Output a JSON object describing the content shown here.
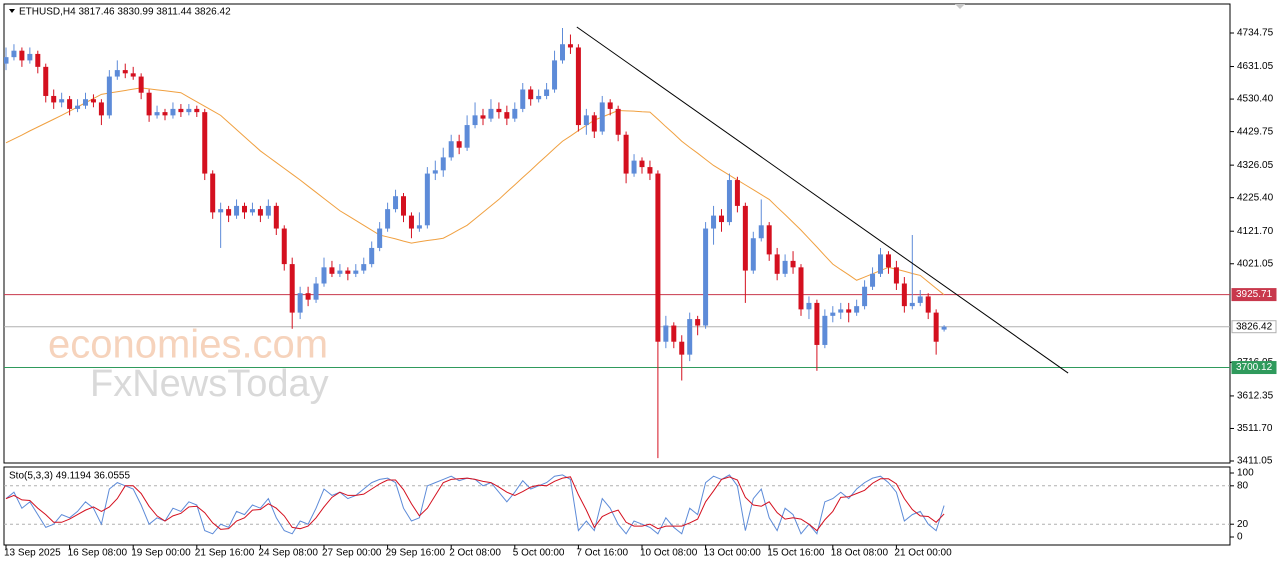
{
  "chart_data": {
    "type": "candlestick",
    "title": "ETHUSD,H4  3817.46 3830.99 3811.44 3826.42",
    "categories": [
      "13 Sep 2025",
      null,
      null,
      null,
      null,
      null,
      null,
      null,
      "16 Sep 08:00",
      null,
      null,
      null,
      null,
      null,
      null,
      null,
      "19 Sep 00:00",
      null,
      null,
      null,
      null,
      null,
      null,
      null,
      "21 Sep 16:00",
      null,
      null,
      null,
      null,
      null,
      null,
      null,
      "24 Sep 08:00",
      null,
      null,
      null,
      null,
      null,
      null,
      null,
      "27 Sep 00:00",
      null,
      null,
      null,
      null,
      null,
      null,
      null,
      "29 Sep 16:00",
      null,
      null,
      null,
      null,
      null,
      null,
      null,
      "2 Oct 08:00",
      null,
      null,
      null,
      null,
      null,
      null,
      null,
      "5 Oct 00:00",
      null,
      null,
      null,
      null,
      null,
      null,
      null,
      "7 Oct 16:00",
      null,
      null,
      null,
      null,
      null,
      null,
      null,
      "10 Oct 08:00",
      null,
      null,
      null,
      null,
      null,
      null,
      null,
      "13 Oct 00:00",
      null,
      null,
      null,
      null,
      null,
      null,
      null,
      "15 Oct 16:00",
      null,
      null,
      null,
      null,
      null,
      null,
      null,
      "18 Oct 08:00",
      null,
      null,
      null,
      null,
      null,
      null,
      null,
      "21 Oct 00:00",
      null,
      null,
      null,
      null,
      null,
      null
    ],
    "ohlc": [
      [
        4640,
        4690,
        4620,
        4660
      ],
      [
        4660,
        4700,
        4650,
        4680
      ],
      [
        4680,
        4690,
        4630,
        4650
      ],
      [
        4650,
        4690,
        4640,
        4670
      ],
      [
        4670,
        4680,
        4610,
        4630
      ],
      [
        4630,
        4640,
        4520,
        4540
      ],
      [
        4540,
        4560,
        4500,
        4520
      ],
      [
        4520,
        4550,
        4505,
        4530
      ],
      [
        4530,
        4540,
        4480,
        4500
      ],
      [
        4500,
        4530,
        4490,
        4510
      ],
      [
        4510,
        4550,
        4500,
        4530
      ],
      [
        4530,
        4545,
        4505,
        4520
      ],
      [
        4520,
        4530,
        4450,
        4480
      ],
      [
        4480,
        4620,
        4470,
        4600
      ],
      [
        4600,
        4650,
        4590,
        4620
      ],
      [
        4620,
        4640,
        4595,
        4610
      ],
      [
        4610,
        4630,
        4590,
        4600
      ],
      [
        4600,
        4610,
        4530,
        4550
      ],
      [
        4550,
        4560,
        4460,
        4480
      ],
      [
        4480,
        4510,
        4470,
        4490
      ],
      [
        4490,
        4500,
        4465,
        4480
      ],
      [
        4480,
        4520,
        4470,
        4500
      ],
      [
        4500,
        4515,
        4475,
        4490
      ],
      [
        4490,
        4515,
        4480,
        4500
      ],
      [
        4500,
        4510,
        4475,
        4490
      ],
      [
        4490,
        4500,
        4280,
        4300
      ],
      [
        4300,
        4310,
        4160,
        4180
      ],
      [
        4180,
        4210,
        4070,
        4190
      ],
      [
        4190,
        4200,
        4150,
        4170
      ],
      [
        4170,
        4220,
        4160,
        4200
      ],
      [
        4200,
        4210,
        4160,
        4180
      ],
      [
        4180,
        4210,
        4170,
        4190
      ],
      [
        4190,
        4200,
        4150,
        4170
      ],
      [
        4170,
        4220,
        4160,
        4200
      ],
      [
        4200,
        4210,
        4110,
        4130
      ],
      [
        4130,
        4140,
        4000,
        4020
      ],
      [
        4020,
        4040,
        3820,
        3870
      ],
      [
        3870,
        3950,
        3850,
        3930
      ],
      [
        3930,
        3950,
        3890,
        3910
      ],
      [
        3910,
        3980,
        3900,
        3960
      ],
      [
        3960,
        4040,
        3950,
        4010
      ],
      [
        4010,
        4030,
        3980,
        3990
      ],
      [
        3990,
        4020,
        3980,
        4000
      ],
      [
        4000,
        4010,
        3970,
        3990
      ],
      [
        3990,
        4020,
        3980,
        4000
      ],
      [
        4000,
        4040,
        3990,
        4020
      ],
      [
        4020,
        4090,
        4010,
        4070
      ],
      [
        4070,
        4150,
        4060,
        4130
      ],
      [
        4130,
        4210,
        4120,
        4190
      ],
      [
        4190,
        4250,
        4180,
        4230
      ],
      [
        4230,
        4240,
        4150,
        4170
      ],
      [
        4170,
        4180,
        4100,
        4130
      ],
      [
        4130,
        4180,
        4120,
        4140
      ],
      [
        4140,
        4320,
        4130,
        4300
      ],
      [
        4300,
        4340,
        4280,
        4310
      ],
      [
        4310,
        4380,
        4290,
        4350
      ],
      [
        4350,
        4420,
        4340,
        4400
      ],
      [
        4400,
        4420,
        4360,
        4380
      ],
      [
        4380,
        4480,
        4370,
        4450
      ],
      [
        4450,
        4520,
        4440,
        4480
      ],
      [
        4480,
        4500,
        4450,
        4470
      ],
      [
        4470,
        4530,
        4460,
        4500
      ],
      [
        4500,
        4520,
        4470,
        4490
      ],
      [
        4490,
        4510,
        4450,
        4470
      ],
      [
        4470,
        4520,
        4460,
        4500
      ],
      [
        4500,
        4580,
        4490,
        4560
      ],
      [
        4560,
        4570,
        4510,
        4530
      ],
      [
        4530,
        4560,
        4520,
        4540
      ],
      [
        4540,
        4580,
        4530,
        4560
      ],
      [
        4560,
        4680,
        4550,
        4650
      ],
      [
        4650,
        4750,
        4640,
        4700
      ],
      [
        4700,
        4730,
        4670,
        4690
      ],
      [
        4690,
        4700,
        4430,
        4450
      ],
      [
        4450,
        4500,
        4420,
        4480
      ],
      [
        4480,
        4490,
        4410,
        4430
      ],
      [
        4430,
        4540,
        4420,
        4520
      ],
      [
        4520,
        4530,
        4480,
        4500
      ],
      [
        4500,
        4510,
        4400,
        4420
      ],
      [
        4420,
        4430,
        4270,
        4300
      ],
      [
        4300,
        4360,
        4290,
        4340
      ],
      [
        4340,
        4350,
        4300,
        4320
      ],
      [
        4320,
        4340,
        4280,
        4300
      ],
      [
        4300,
        4310,
        3420,
        3780
      ],
      [
        3780,
        3860,
        3760,
        3830
      ],
      [
        3830,
        3840,
        3760,
        3780
      ],
      [
        3780,
        3800,
        3660,
        3740
      ],
      [
        3740,
        3870,
        3720,
        3850
      ],
      [
        3850,
        3860,
        3800,
        3830
      ],
      [
        3830,
        4150,
        3820,
        4130
      ],
      [
        4130,
        4200,
        4080,
        4170
      ],
      [
        4170,
        4190,
        4120,
        4150
      ],
      [
        4150,
        4300,
        4140,
        4280
      ],
      [
        4280,
        4290,
        4180,
        4200
      ],
      [
        4200,
        4210,
        3900,
        4000
      ],
      [
        4000,
        4120,
        3990,
        4100
      ],
      [
        4100,
        4220,
        4090,
        4140
      ],
      [
        4140,
        4150,
        4030,
        4050
      ],
      [
        4050,
        4070,
        3970,
        3990
      ],
      [
        3990,
        4050,
        3980,
        4030
      ],
      [
        4030,
        4060,
        3990,
        4010
      ],
      [
        4010,
        4020,
        3860,
        3880
      ],
      [
        3880,
        3920,
        3850,
        3900
      ],
      [
        3900,
        3910,
        3690,
        3770
      ],
      [
        3770,
        3880,
        3760,
        3860
      ],
      [
        3860,
        3890,
        3840,
        3870
      ],
      [
        3870,
        3900,
        3850,
        3880
      ],
      [
        3880,
        3900,
        3840,
        3870
      ],
      [
        3870,
        3910,
        3860,
        3890
      ],
      [
        3890,
        3970,
        3880,
        3950
      ],
      [
        3950,
        4010,
        3940,
        3990
      ],
      [
        3990,
        4070,
        3980,
        4050
      ],
      [
        4050,
        4060,
        3990,
        4010
      ],
      [
        4010,
        4030,
        3940,
        3960
      ],
      [
        3960,
        3980,
        3870,
        3890
      ],
      [
        3890,
        4110,
        3880,
        3900
      ],
      [
        3900,
        3940,
        3890,
        3920
      ],
      [
        3920,
        3930,
        3850,
        3870
      ],
      [
        3870,
        3880,
        3740,
        3780
      ],
      [
        3817.46,
        3830.99,
        3811.44,
        3826.42
      ]
    ],
    "up_color": "#5d8bd8",
    "down_color": "#d4101f",
    "ma": {
      "color": "#f0a040",
      "values": [
        4395,
        4407,
        4419,
        4432,
        4444,
        4456,
        4468,
        4480,
        4493,
        4506,
        4519,
        4532,
        4545,
        4549,
        4553,
        4557,
        4561,
        4565,
        4562,
        4559,
        4556,
        4553,
        4550,
        4536,
        4522,
        4508,
        4494,
        4480,
        4458,
        4436,
        4414,
        4392,
        4370,
        4352,
        4334,
        4316,
        4298,
        4280,
        4261,
        4242,
        4223,
        4204,
        4185,
        4170,
        4155,
        4140,
        4125,
        4110,
        4104,
        4098,
        4091,
        4085,
        4089,
        4093,
        4096,
        4100,
        4113,
        4127,
        4140,
        4160,
        4180,
        4200,
        4220,
        4243,
        4265,
        4288,
        4310,
        4333,
        4355,
        4378,
        4400,
        4416,
        4433,
        4449,
        4465,
        4475,
        4485,
        4495,
        4494,
        4493,
        4491,
        4490,
        4468,
        4445,
        4423,
        4400,
        4381,
        4363,
        4344,
        4325,
        4310,
        4295,
        4280,
        4265,
        4250,
        4235,
        4220,
        4196,
        4173,
        4149,
        4125,
        4099,
        4073,
        4046,
        4020,
        4003,
        3987,
        3970,
        3980,
        3990,
        4000,
        4010,
        4004,
        3998,
        3991,
        3985,
        3965,
        3945,
        3925
      ]
    },
    "ylim": [
      3404.9,
      4824.4
    ],
    "yticks": [
      4734.75,
      4631.05,
      {
        "value": 4530.4,
        "label": "4530.40"
      },
      4429.75,
      4326.05,
      {
        "value": 4225.4,
        "label": "4225.40"
      },
      {
        "value": 4121.7,
        "label": "4121.70"
      },
      4021.05,
      3716.05,
      3612.35,
      {
        "value": 3511.7,
        "label": "3511.70"
      },
      3411.05
    ],
    "hlines": [
      {
        "value": 3925.71,
        "color": "#c8384c",
        "label_fill": "#c8384c",
        "label_color": "#ffffff"
      },
      {
        "value": 3826.42,
        "color": "#b0b0b0",
        "label_fill": "#ffffff",
        "label_color": "#000000"
      },
      {
        "value": 3700.12,
        "color": "#2f9a5c",
        "label_fill": "#2f9a5c",
        "label_color": "#ffffff"
      }
    ],
    "trendline": {
      "x": [
        71.8,
        133.6
      ],
      "values": [
        4753.3,
        3683.1
      ],
      "color": "#000000"
    },
    "watermark": [
      "economies.com",
      "FxNewsToday"
    ],
    "oscillator": {
      "title": "Sto(5,3,3) 49.1194 36.0555",
      "ylim": [
        -12.5,
        109.4
      ],
      "yticks": [
        100,
        80,
        20,
        0
      ],
      "levels": [
        80,
        20
      ],
      "series": [
        {
          "color": "#5d8bd8",
          "values": [
            60,
            70,
            45,
            55,
            35,
            15,
            20,
            35,
            30,
            40,
            55,
            45,
            20,
            75,
            85,
            80,
            75,
            50,
            20,
            30,
            25,
            45,
            40,
            55,
            50,
            10,
            5,
            20,
            15,
            40,
            35,
            50,
            45,
            60,
            30,
            10,
            5,
            25,
            20,
            45,
            75,
            65,
            70,
            60,
            65,
            75,
            85,
            90,
            92,
            85,
            45,
            25,
            30,
            80,
            85,
            90,
            95,
            88,
            92,
            90,
            80,
            85,
            70,
            55,
            70,
            88,
            75,
            80,
            85,
            95,
            97,
            90,
            10,
            25,
            10,
            60,
            45,
            20,
            5,
            25,
            20,
            15,
            5,
            30,
            15,
            5,
            45,
            35,
            85,
            95,
            90,
            97,
            80,
            10,
            60,
            75,
            30,
            10,
            45,
            35,
            5,
            20,
            5,
            55,
            60,
            70,
            60,
            75,
            85,
            92,
            95,
            85,
            70,
            25,
            35,
            40,
            20,
            10,
            49.1194
          ]
        },
        {
          "color": "#d4101f",
          "values": [
            60,
            65,
            58,
            57,
            45,
            35,
            23,
            23,
            28,
            35,
            42,
            47,
            40,
            47,
            60,
            80,
            80,
            68,
            48,
            33,
            25,
            33,
            37,
            47,
            48,
            38,
            22,
            12,
            13,
            25,
            30,
            42,
            43,
            52,
            45,
            33,
            15,
            13,
            17,
            30,
            47,
            62,
            70,
            65,
            65,
            67,
            75,
            83,
            89,
            89,
            74,
            52,
            33,
            45,
            65,
            85,
            90,
            91,
            92,
            90,
            87,
            85,
            78,
            70,
            65,
            71,
            78,
            81,
            80,
            87,
            92,
            94,
            66,
            42,
            15,
            32,
            38,
            42,
            23,
            17,
            17,
            20,
            13,
            17,
            17,
            17,
            22,
            28,
            55,
            72,
            90,
            94,
            89,
            62,
            50,
            48,
            55,
            38,
            28,
            30,
            28,
            20,
            10,
            27,
            40,
            62,
            63,
            68,
            73,
            84,
            91,
            91,
            83,
            60,
            43,
            33,
            32,
            23,
            36.0555
          ]
        }
      ]
    }
  }
}
